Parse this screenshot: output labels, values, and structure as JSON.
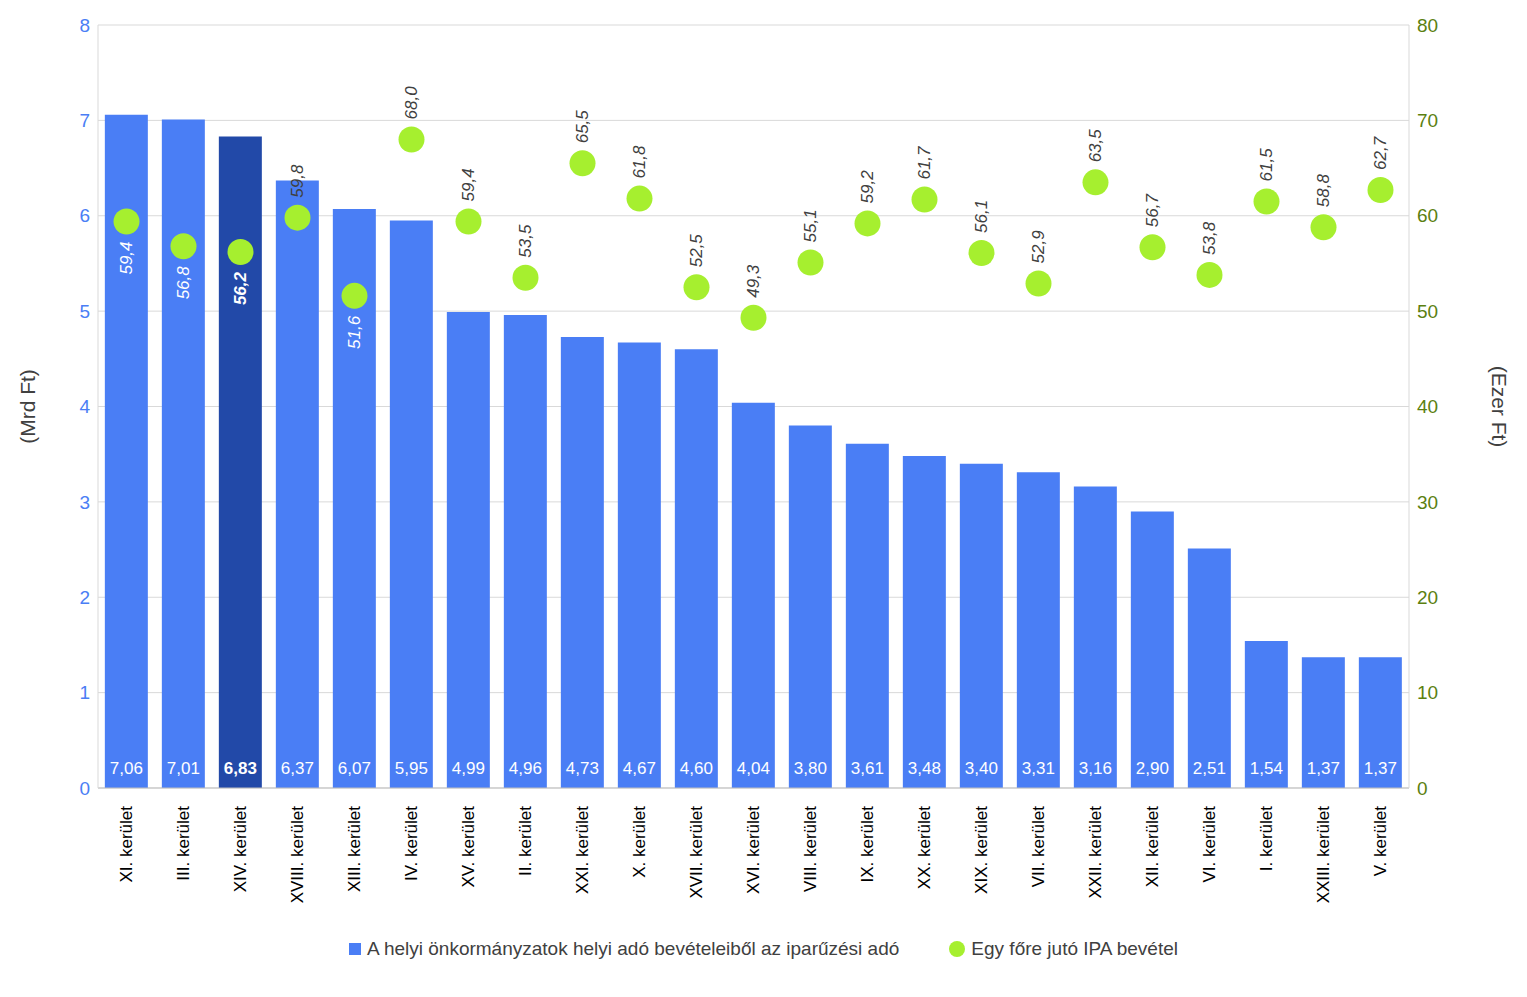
{
  "chart_data": {
    "type": "bar",
    "categories": [
      "XI. kerület",
      "III. kerület",
      "XIV. kerület",
      "XVIII. kerület",
      "XIII. kerület",
      "IV. kerület",
      "XV. kerület",
      "II. kerület",
      "XXI. kerület",
      "X. kerület",
      "XVII. kerület",
      "XVI. kerület",
      "VIII. kerület",
      "IX. kerület",
      "XX. kerület",
      "XIX. kerület",
      "VII. kerület",
      "XXII. kerület",
      "XII. kerület",
      "VI. kerület",
      "I. kerület",
      "XXIII. kerület",
      "V. kerület"
    ],
    "series": [
      {
        "name": "A helyi önkormányzatok helyi adó bevételeiből az iparűzési adó",
        "type": "bar",
        "values": [
          7.06,
          7.01,
          6.83,
          6.37,
          6.07,
          5.95,
          4.99,
          4.96,
          4.73,
          4.67,
          4.6,
          4.04,
          3.8,
          3.61,
          3.48,
          3.4,
          3.31,
          3.16,
          2.9,
          2.51,
          1.54,
          1.37,
          1.37
        ],
        "value_labels": [
          "7,06",
          "7,01",
          "6,83",
          "6,37",
          "6,07",
          "5,95",
          "4,99",
          "4,96",
          "4,73",
          "4,67",
          "4,60",
          "4,04",
          "3,80",
          "3,61",
          "3,48",
          "3,40",
          "3,31",
          "3,16",
          "2,90",
          "2,51",
          "1,54",
          "1,37",
          "1,37"
        ],
        "colors": [
          "#4a7ef5",
          "#4a7ef5",
          "#2249a8",
          "#4a7ef5",
          "#4a7ef5",
          "#4a7ef5",
          "#4a7ef5",
          "#4a7ef5",
          "#4a7ef5",
          "#4a7ef5",
          "#4a7ef5",
          "#4a7ef5",
          "#4a7ef5",
          "#4a7ef5",
          "#4a7ef5",
          "#4a7ef5",
          "#4a7ef5",
          "#4a7ef5",
          "#4a7ef5",
          "#4a7ef5",
          "#4a7ef5",
          "#4a7ef5",
          "#4a7ef5"
        ]
      },
      {
        "name": "Egy főre jutó IPA bevétel",
        "type": "scatter",
        "axis": "y2",
        "marker": "circle",
        "color": "#a6ef2f",
        "values": [
          59.4,
          56.8,
          56.2,
          59.8,
          51.6,
          68.0,
          59.4,
          53.5,
          65.5,
          61.8,
          52.5,
          49.3,
          55.1,
          59.2,
          61.7,
          56.1,
          52.9,
          63.5,
          56.7,
          53.8,
          61.5,
          58.8,
          62.7
        ],
        "value_labels": [
          "59,4",
          "56,8",
          "56,2",
          "59,8",
          "51,6",
          "68,0",
          "59,4",
          "53,5",
          "65,5",
          "61,8",
          "52,5",
          "49,3",
          "55,1",
          "59,2",
          "61,7",
          "56,1",
          "52,9",
          "63,5",
          "56,7",
          "53,8",
          "61,5",
          "58,8",
          "62,7"
        ]
      }
    ],
    "ylabel": "(Mrd Ft)",
    "y2label": "(Ezer Ft)",
    "ylim": [
      0,
      8
    ],
    "yticks": [
      0,
      1,
      2,
      3,
      4,
      5,
      6,
      7,
      8
    ],
    "y2lim": [
      0,
      80
    ],
    "y2ticks": [
      0,
      10,
      20,
      30,
      40,
      50,
      60,
      70,
      80
    ],
    "grid": true,
    "data_labels": true,
    "legend": "bottom"
  }
}
